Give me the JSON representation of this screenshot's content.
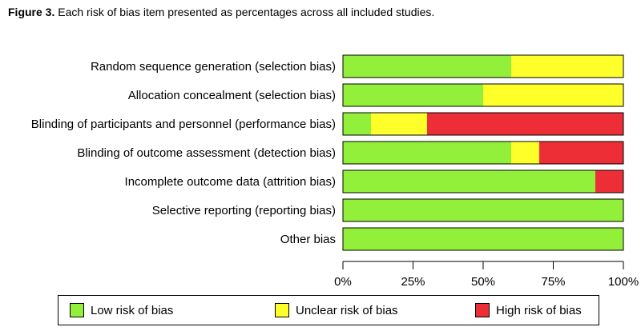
{
  "caption": {
    "label": "Figure 3.",
    "text": "Each risk of bias item presented as percentages across all included studies."
  },
  "colors": {
    "low": "#92f03a",
    "unclear": "#ffff2a",
    "high": "#ee2e36",
    "border": "#000000"
  },
  "chart_data": {
    "type": "bar",
    "orientation": "horizontal",
    "stacked": true,
    "categories": [
      "Random sequence generation (selection bias)",
      "Allocation concealment (selection bias)",
      "Blinding of participants and personnel (performance bias)",
      "Blinding of outcome assessment (detection bias)",
      "Incomplete outcome data (attrition bias)",
      "Selective reporting (reporting bias)",
      "Other bias"
    ],
    "series": [
      {
        "name": "Low risk of bias",
        "color": "#92f03a",
        "values": [
          60,
          50,
          10,
          60,
          90,
          100,
          100
        ]
      },
      {
        "name": "Unclear risk of bias",
        "color": "#ffff2a",
        "values": [
          40,
          50,
          20,
          10,
          0,
          0,
          0
        ]
      },
      {
        "name": "High risk of bias",
        "color": "#ee2e36",
        "values": [
          0,
          0,
          70,
          30,
          10,
          0,
          0
        ]
      }
    ],
    "xlim": [
      0,
      100
    ],
    "xticks": [
      "0%",
      "25%",
      "50%",
      "75%",
      "100%"
    ],
    "grid": false,
    "legend_position": "bottom"
  }
}
